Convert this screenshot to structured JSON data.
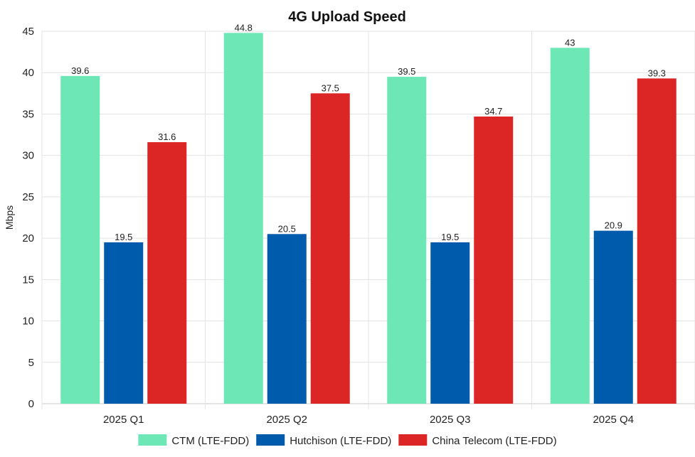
{
  "chart_data": {
    "type": "bar",
    "title": "4G Upload Speed",
    "xlabel": "",
    "ylabel": "Mbps",
    "ylim": [
      0,
      45
    ],
    "yticks": [
      0,
      5,
      10,
      15,
      20,
      25,
      30,
      35,
      40,
      45
    ],
    "grid": true,
    "legend_position": "bottom",
    "categories": [
      "2025 Q1",
      "2025 Q2",
      "2025 Q3",
      "2025 Q4"
    ],
    "series": [
      {
        "name": "CTM (LTE-FDD)",
        "color": "#6ee7b7",
        "values": [
          39.6,
          44.8,
          39.5,
          43
        ]
      },
      {
        "name": "Hutchison (LTE-FDD)",
        "color": "#005bac",
        "values": [
          19.5,
          20.5,
          19.5,
          20.9
        ]
      },
      {
        "name": "China Telecom (LTE-FDD)",
        "color": "#dc2626",
        "values": [
          31.6,
          37.5,
          34.7,
          39.3
        ]
      }
    ]
  }
}
